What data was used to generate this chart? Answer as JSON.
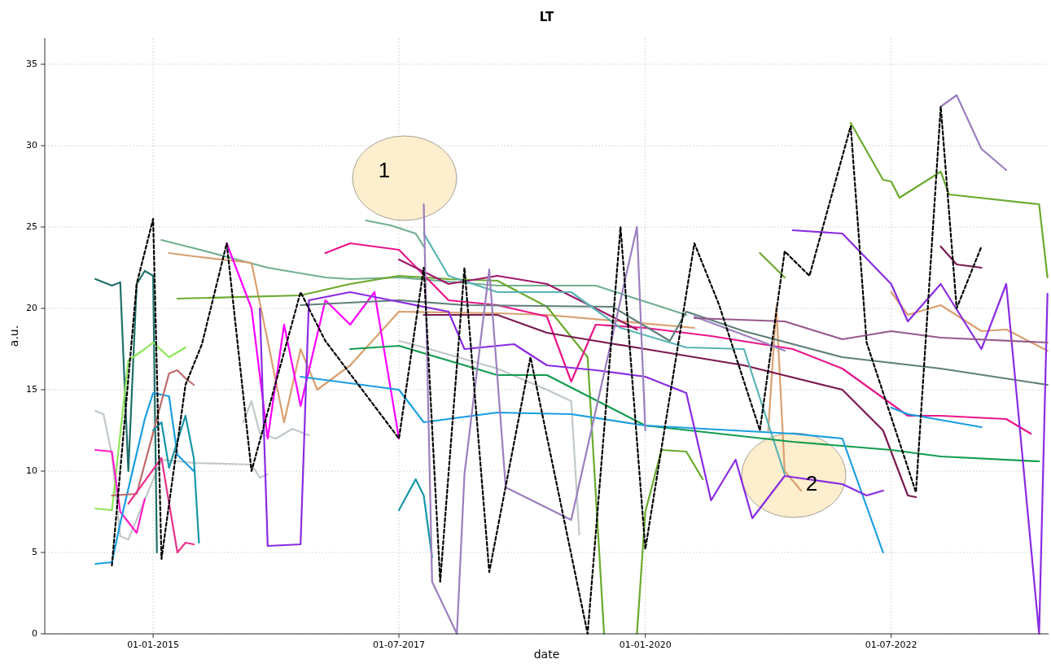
{
  "chart_data": {
    "type": "line",
    "title": "LT",
    "xlabel": "date",
    "ylabel": "a.u.",
    "grid": true,
    "line_style": "solid",
    "xlim": [
      "2013-11-25",
      "2024-02-05"
    ],
    "ylim": [
      0,
      36.6
    ],
    "yticks": [
      0,
      5,
      10,
      15,
      20,
      25,
      30,
      35
    ],
    "xticks": [
      {
        "value": "2015-01-01",
        "label": "01-01-2015"
      },
      {
        "value": "2017-07-01",
        "label": "01-07-2017"
      },
      {
        "value": "2020-01-01",
        "label": "01-01-2020"
      },
      {
        "value": "2022-07-01",
        "label": "01-07-2022"
      }
    ],
    "annotations": [
      "1",
      "2"
    ],
    "series": [
      {
        "color": "#c0c8c8",
        "x": [
          "2014-06",
          "2014-07",
          "2014-08",
          "2014-09",
          "2014-10",
          "2015-02",
          "2015-06",
          "2016-01",
          "2016-02",
          "2016-03"
        ],
        "values": [
          13.7,
          13.5,
          11,
          6,
          5.8,
          10.7,
          10.5,
          10.4,
          9.6,
          9.8
        ]
      },
      {
        "color": "#c0c8c8",
        "x": [
          "2015-12",
          "2016-01",
          "2016-02",
          "2016-04",
          "2016-06",
          "2016-08"
        ],
        "values": [
          13,
          14.3,
          12.3,
          12,
          12.6,
          12.2
        ]
      },
      {
        "color": "#c0c8c8",
        "x": [
          "2017-07",
          "2017-10",
          "2018-07",
          "2019-01",
          "2019-04",
          "2019-05"
        ],
        "values": [
          18,
          17.6,
          16.3,
          15,
          14.3,
          6.1
        ]
      },
      {
        "color": "#1f6f6a",
        "x": [
          "2014-06",
          "2014-08",
          "2014-09",
          "2014-10",
          "2014-11",
          "2014-12",
          "2015-01",
          "2015-01-15"
        ],
        "values": [
          21.8,
          21.4,
          21.6,
          10,
          21.5,
          22.3,
          22,
          5
        ]
      },
      {
        "color": "#8ee65a",
        "x": [
          "2014-06",
          "2014-08",
          "2014-10",
          "2014-12",
          "2015-01",
          "2015-03",
          "2015-05"
        ],
        "values": [
          7.7,
          7.6,
          16.8,
          17.5,
          17.9,
          17,
          17.6
        ]
      },
      {
        "color": "#ff1ec8",
        "x": [
          "2014-06",
          "2014-08",
          "2014-09",
          "2014-11",
          "2014-12"
        ],
        "values": [
          11.3,
          11.2,
          7.5,
          6.2,
          8.3
        ]
      },
      {
        "color": "#1a9ee0",
        "x": [
          "2014-06",
          "2014-08",
          "2014-09",
          "2014-12",
          "2015-01",
          "2015-03",
          "2015-04",
          "2015-06"
        ],
        "values": [
          4.3,
          4.4,
          6.8,
          13.2,
          14.8,
          14.6,
          11,
          10
        ]
      },
      {
        "color": "#c06a6a",
        "x": [
          "2014-08",
          "2014-11",
          "2015-03",
          "2015-04",
          "2015-05",
          "2015-06"
        ],
        "values": [
          8.5,
          8.6,
          16,
          16.2,
          15.7,
          15.3
        ]
      },
      {
        "color": "#e8328c",
        "x": [
          "2014-10",
          "2015-02",
          "2015-04",
          "2015-05",
          "2015-06"
        ],
        "values": [
          8,
          10.8,
          5,
          5.6,
          5.5
        ]
      },
      {
        "color": "#1797a8",
        "x": [
          "2015-01",
          "2015-02",
          "2015-03",
          "2015-05",
          "2015-06",
          "2015-06-20"
        ],
        "values": [
          12.5,
          13,
          10.2,
          13.4,
          10.8,
          5.6
        ]
      },
      {
        "color": "#70b090",
        "x": [
          "2015-02",
          "2015-06",
          "2016-03",
          "2016-10",
          "2017-01",
          "2017-07",
          "2018-07",
          "2019-07",
          "2020-06"
        ],
        "values": [
          24.2,
          23.7,
          22.5,
          21.9,
          21.8,
          21.9,
          21.4,
          21.4,
          19.6
        ]
      },
      {
        "color": "#70b090",
        "x": [
          "2017-03",
          "2017-06",
          "2017-09",
          "2017-10"
        ],
        "values": [
          25.4,
          25.1,
          24.6,
          23.8
        ]
      },
      {
        "color": "#d9a070",
        "x": [
          "2015-03",
          "2015-06",
          "2016-01",
          "2016-03",
          "2016-05",
          "2016-07",
          "2016-09",
          "2017-01",
          "2017-07",
          "2018-07",
          "2019-01",
          "2020-07"
        ],
        "values": [
          23.4,
          23.2,
          22.8,
          18,
          13,
          17.5,
          15,
          16.5,
          19.8,
          19.7,
          19.6,
          18.8
        ]
      },
      {
        "color": "#d9a070",
        "x": [
          "2021-04",
          "2021-05",
          "2021-06",
          "2021-08"
        ],
        "values": [
          12.5,
          20.1,
          10,
          8.8
        ]
      },
      {
        "color": "#d9a070",
        "x": [
          "2022-07",
          "2022-09",
          "2023-01",
          "2023-06",
          "2023-09",
          "2024-02"
        ],
        "values": [
          21,
          19.6,
          20.2,
          18.6,
          18.7,
          17.4
        ]
      },
      {
        "color": "#6aaa2e",
        "x": [
          "2015-04",
          "2016-07",
          "2017-01",
          "2017-07",
          "2018-01",
          "2018-07",
          "2019-01",
          "2019-06",
          "2019-08"
        ],
        "values": [
          20.6,
          20.8,
          21.5,
          22,
          21.8,
          21.7,
          20.1,
          17,
          0
        ]
      },
      {
        "color": "#6aaa2e",
        "x": [
          "2019-12",
          "2020-01",
          "2020-03",
          "2020-06",
          "2020-08"
        ],
        "values": [
          0,
          7.5,
          11.3,
          11.2,
          9.5
        ]
      },
      {
        "color": "#6aaa2e",
        "x": [
          "2021-03",
          "2021-06"
        ],
        "values": [
          23.4,
          21.9
        ]
      },
      {
        "color": "#6aaa2e",
        "x": [
          "2022-02",
          "2022-06",
          "2022-07",
          "2022-08",
          "2023-01",
          "2023-02",
          "2024-01",
          "2024-02"
        ],
        "values": [
          31.4,
          27.9,
          27.8,
          26.8,
          28.4,
          27,
          26.4,
          21.9
        ]
      },
      {
        "color": "#ff00ff",
        "x": [
          "2015-10",
          "2016-01",
          "2016-03",
          "2016-05",
          "2016-07",
          "2016-10",
          "2017-01",
          "2017-04",
          "2017-07"
        ],
        "values": [
          24,
          20,
          12,
          19,
          14,
          20.5,
          19,
          21,
          12
        ]
      },
      {
        "color": "#e8168c",
        "x": [
          "2016-10",
          "2017-01",
          "2017-07",
          "2018-01",
          "2018-07",
          "2019-01",
          "2019-04",
          "2019-07",
          "2020-01",
          "2020-09",
          "2021-07",
          "2022-01",
          "2022-06",
          "2022-09",
          "2023-01",
          "2023-09",
          "2023-12"
        ],
        "values": [
          23.4,
          24,
          23.6,
          20.5,
          20.2,
          19.5,
          15.5,
          19,
          18.8,
          18.3,
          17.5,
          16.3,
          14.5,
          13.4,
          13.4,
          13.2,
          12.3
        ]
      },
      {
        "color": "#a0186a",
        "x": [
          "2017-07",
          "2018-01",
          "2018-07",
          "2019-01",
          "2019-07",
          "2019-12"
        ],
        "values": [
          23,
          21.5,
          22,
          21.5,
          20,
          18.7
        ]
      },
      {
        "color": "#7a1a50",
        "x": [
          "2017-10",
          "2018-07",
          "2019-01",
          "2019-07",
          "2020-01",
          "2021-01",
          "2022-01",
          "2022-06",
          "2022-09",
          "2022-10"
        ],
        "values": [
          19.6,
          19.6,
          18.5,
          18,
          17.5,
          16.5,
          15,
          12.5,
          8.5,
          8.4
        ]
      },
      {
        "color": "#7a1a50",
        "x": [
          "2023-01",
          "2023-03",
          "2023-06"
        ],
        "values": [
          23.8,
          22.7,
          22.5
        ]
      },
      {
        "color": "#5f7f7a",
        "x": [
          "2016-07",
          "2017-07",
          "2018-03",
          "2019-09",
          "2020-04",
          "2020-06",
          "2021-01",
          "2022-01",
          "2023-01",
          "2024-02"
        ],
        "values": [
          20.2,
          20.5,
          20.2,
          20.1,
          18,
          19.8,
          18.6,
          17,
          16.3,
          15.3
        ]
      },
      {
        "color": "#5ab4b4",
        "x": [
          "2017-10",
          "2018-01",
          "2018-07",
          "2019-04",
          "2019-10",
          "2020-06",
          "2021-01",
          "2021-06"
        ],
        "values": [
          24.6,
          22,
          21,
          21,
          18.8,
          17.6,
          17.5,
          9.8
        ]
      },
      {
        "color": "#129c50",
        "x": [
          "2017-01",
          "2017-07",
          "2018-07",
          "2019-01",
          "2020-01",
          "2021-07",
          "2022-07",
          "2023-01",
          "2024-01"
        ],
        "values": [
          17.5,
          17.7,
          15.9,
          15.9,
          12.8,
          11.8,
          11.3,
          10.9,
          10.6
        ]
      },
      {
        "color": "#1a9ee0",
        "x": [
          "2016-07",
          "2017-07",
          "2017-10",
          "2018-07",
          "2019-04",
          "2020-01",
          "2021-07",
          "2022-01",
          "2022-06"
        ],
        "values": [
          15.8,
          15,
          13,
          13.6,
          13.5,
          12.8,
          12.3,
          12,
          5
        ]
      },
      {
        "color": "#1a9ee0",
        "x": [
          "2022-07",
          "2022-09",
          "2023-06"
        ],
        "values": [
          13.9,
          13.5,
          12.7
        ]
      },
      {
        "color": "#1797a8",
        "x": [
          "2017-07",
          "2017-09",
          "2017-10",
          "2017-11"
        ],
        "values": [
          7.6,
          9.5,
          8.5,
          4.7
        ]
      },
      {
        "color": "#8a2be2",
        "x": [
          "2016-02",
          "2016-03",
          "2016-07",
          "2016-08",
          "2017-01",
          "2017-06",
          "2018-01",
          "2018-03",
          "2018-09",
          "2019-01",
          "2019-07",
          "2020-01",
          "2020-06",
          "2020-09",
          "2020-12",
          "2021-02",
          "2021-06",
          "2022-01",
          "2022-04",
          "2022-06"
        ],
        "values": [
          20,
          5.4,
          5.5,
          20.5,
          21,
          20.5,
          19.8,
          17.5,
          17.8,
          16.5,
          16.2,
          15.8,
          14.8,
          8.2,
          10.7,
          7.1,
          9.7,
          9.2,
          8.5,
          8.8
        ]
      },
      {
        "color": "#8a2be2",
        "x": [
          "2021-07",
          "2022-01",
          "2022-07",
          "2022-09",
          "2023-01",
          "2023-06",
          "2023-09",
          "2024-01",
          "2024-02"
        ],
        "values": [
          24.8,
          24.6,
          21.5,
          19.2,
          21.5,
          17.5,
          21.5,
          0,
          20.9
        ]
      },
      {
        "color": "#9b7fbf",
        "x": [
          "2017-10",
          "2017-11",
          "2018-02",
          "2018-03",
          "2018-06",
          "2018-08",
          "2019-04",
          "2019-12",
          "2020-01"
        ],
        "values": [
          26.4,
          3.2,
          0,
          9.8,
          22.4,
          9,
          7,
          25,
          12.5
        ]
      },
      {
        "color": "#9b7fbf",
        "x": [
          "2020-07",
          "2021-03",
          "2021-06"
        ],
        "values": [
          19.5,
          18,
          17.4
        ]
      },
      {
        "color": "#9b7fbf",
        "x": [
          "2023-01",
          "2023-03",
          "2023-06",
          "2023-09"
        ],
        "values": [
          32.4,
          33.1,
          29.8,
          28.5
        ]
      },
      {
        "color": "#965a8c",
        "x": [
          "2020-07",
          "2021-06",
          "2022-01",
          "2022-07",
          "2023-01",
          "2024-02"
        ],
        "values": [
          19.4,
          19.2,
          18.1,
          18.6,
          18.2,
          17.9
        ]
      },
      {
        "color": "#000000",
        "line_style": "dashed",
        "x": [
          "2014-08",
          "2014-11",
          "2015-01",
          "2015-02",
          "2015-05",
          "2015-07",
          "2015-10",
          "2016-01",
          "2016-07",
          "2016-10",
          "2017-07",
          "2017-10",
          "2017-12",
          "2018-03",
          "2018-06",
          "2018-11",
          "2019-06",
          "2019-10",
          "2020-01",
          "2020-07",
          "2020-10",
          "2021-03",
          "2021-06",
          "2021-09",
          "2022-02",
          "2022-04",
          "2022-10",
          "2023-01",
          "2023-03",
          "2023-06"
        ],
        "values": [
          4.2,
          21.5,
          25.5,
          4.6,
          15.3,
          17.8,
          24,
          10,
          21,
          18,
          12,
          22.5,
          3.2,
          22.5,
          3.8,
          17,
          0,
          25,
          5.2,
          24,
          20.2,
          12.5,
          23.5,
          22,
          31.2,
          17.9,
          8.7,
          32.4,
          20,
          23.8
        ]
      }
    ]
  }
}
